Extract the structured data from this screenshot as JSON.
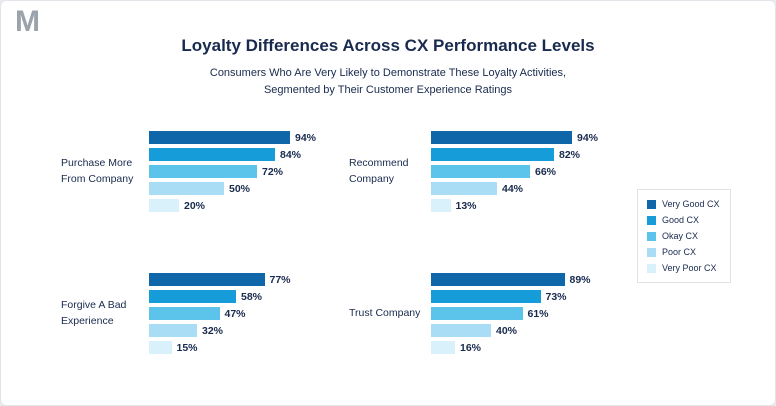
{
  "page": {
    "logo": "M",
    "title": "Loyalty Differences Across CX Performance Levels",
    "subtitle_line1": "Consumers Who Are Very Likely to Demonstrate These Loyalty Activities,",
    "subtitle_line2": "Segmented by Their Customer Experience Ratings"
  },
  "legend": {
    "items": [
      {
        "label": "Very Good CX",
        "color": "#0f66a9"
      },
      {
        "label": "Good CX",
        "color": "#169cd8"
      },
      {
        "label": "Okay CX",
        "color": "#5cc3ea"
      },
      {
        "label": "Poor CX",
        "color": "#a9ddf5"
      },
      {
        "label": "Very Poor CX",
        "color": "#d9f1fb"
      }
    ]
  },
  "chart_data": {
    "type": "bar",
    "orientation": "horizontal",
    "title": "Loyalty Differences Across CX Performance Levels",
    "subtitle": "Consumers Who Are Very Likely to Demonstrate These Loyalty Activities, Segmented by Their Customer Experience Ratings",
    "series_labels": [
      "Very Good CX",
      "Good CX",
      "Okay CX",
      "Poor CX",
      "Very Poor CX"
    ],
    "value_format": "percent",
    "xlim": [
      0,
      100
    ],
    "legend_position": "right",
    "grid": false,
    "groups": [
      {
        "category": "Purchase More From Company",
        "values": [
          94,
          84,
          72,
          50,
          20
        ]
      },
      {
        "category": "Recommend Company",
        "values": [
          94,
          82,
          66,
          44,
          13
        ]
      },
      {
        "category": "Forgive A Bad Experience",
        "values": [
          77,
          58,
          47,
          32,
          15
        ]
      },
      {
        "category": "Trust Company",
        "values": [
          89,
          73,
          61,
          40,
          16
        ]
      }
    ]
  }
}
